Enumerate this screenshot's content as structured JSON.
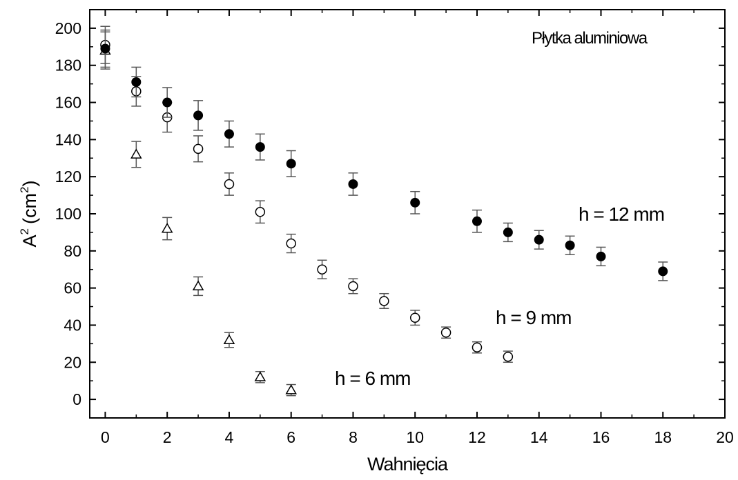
{
  "chart_data": {
    "type": "scatter",
    "annotation": "Płytka aluminiowa",
    "xlabel": "Wahnięcia",
    "ylabel_main": "A",
    "ylabel_sup": "2",
    "ylabel_unit": "(cm",
    "ylabel_unit_sup": "2",
    "ylabel_close": ")",
    "xlim": [
      -0.5,
      20
    ],
    "ylim": [
      -10,
      210
    ],
    "xticks": [
      0,
      2,
      4,
      6,
      8,
      10,
      12,
      14,
      16,
      18,
      20
    ],
    "yticks": [
      0,
      20,
      40,
      60,
      80,
      100,
      120,
      140,
      160,
      180,
      200
    ],
    "grid": false,
    "series": [
      {
        "name": "h = 12 mm",
        "marker": "filled-circle",
        "color": "#000000",
        "x": [
          0,
          1,
          2,
          3,
          4,
          5,
          6,
          8,
          10,
          12,
          13,
          14,
          15,
          16,
          18
        ],
        "y": [
          189,
          171,
          160,
          153,
          143,
          136,
          127,
          116,
          106,
          96,
          90,
          86,
          83,
          77,
          69
        ],
        "err": [
          10,
          8,
          8,
          8,
          7,
          7,
          7,
          6,
          6,
          6,
          5,
          5,
          5,
          5,
          5
        ]
      },
      {
        "name": "h = 9 mm",
        "marker": "open-circle",
        "color": "#000000",
        "x": [
          0,
          1,
          2,
          3,
          4,
          5,
          6,
          7,
          8,
          9,
          10,
          11,
          12,
          13
        ],
        "y": [
          191,
          166,
          152,
          135,
          116,
          101,
          84,
          70,
          61,
          53,
          44,
          36,
          28,
          23
        ],
        "err": [
          10,
          8,
          8,
          7,
          6,
          6,
          5,
          5,
          4,
          4,
          4,
          3,
          3,
          3
        ]
      },
      {
        "name": "h = 6 mm",
        "marker": "open-triangle",
        "color": "#000000",
        "x": [
          0,
          1,
          2,
          3,
          4,
          5,
          6
        ],
        "y": [
          188,
          132,
          92,
          61,
          32,
          12,
          5
        ],
        "err": [
          10,
          7,
          6,
          5,
          4,
          3,
          3
        ]
      }
    ]
  }
}
